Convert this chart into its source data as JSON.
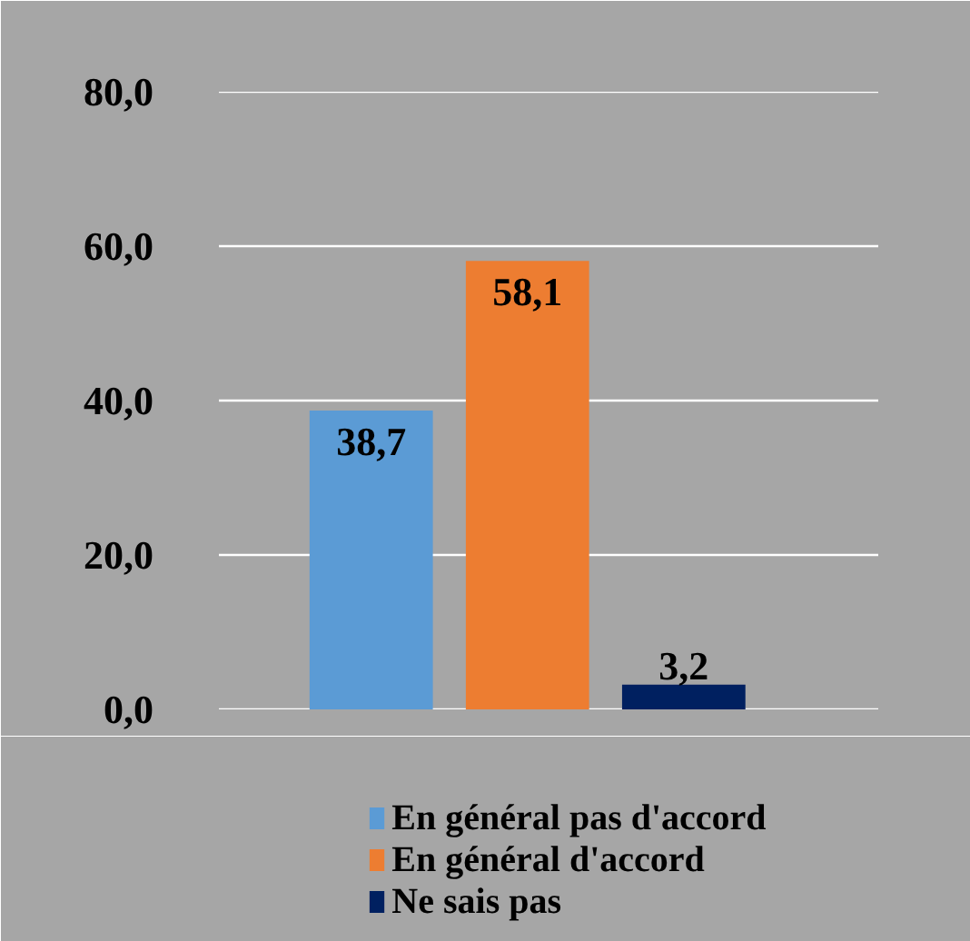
{
  "chart_data": {
    "type": "bar",
    "categories": [
      null
    ],
    "series": [
      {
        "name": "En général pas d'accord",
        "color": "#5b9bd5",
        "values": [
          38.7
        ],
        "value_labels": [
          "38,7"
        ]
      },
      {
        "name": "En général d'accord",
        "color": "#ed7d31",
        "values": [
          58.1
        ],
        "value_labels": [
          "58,1"
        ]
      },
      {
        "name": "Ne sais pas",
        "color": "#002060",
        "values": [
          3.2
        ],
        "value_labels": [
          "3,2"
        ]
      }
    ],
    "ylim": [
      0,
      80
    ],
    "yticks": [
      {
        "value": 0,
        "label": "0,0"
      },
      {
        "value": 20,
        "label": "20,0"
      },
      {
        "value": 40,
        "label": "40,0"
      },
      {
        "value": 60,
        "label": "60,0"
      },
      {
        "value": 80,
        "label": "80,0"
      }
    ],
    "grid": "y",
    "legend": "bottom"
  }
}
